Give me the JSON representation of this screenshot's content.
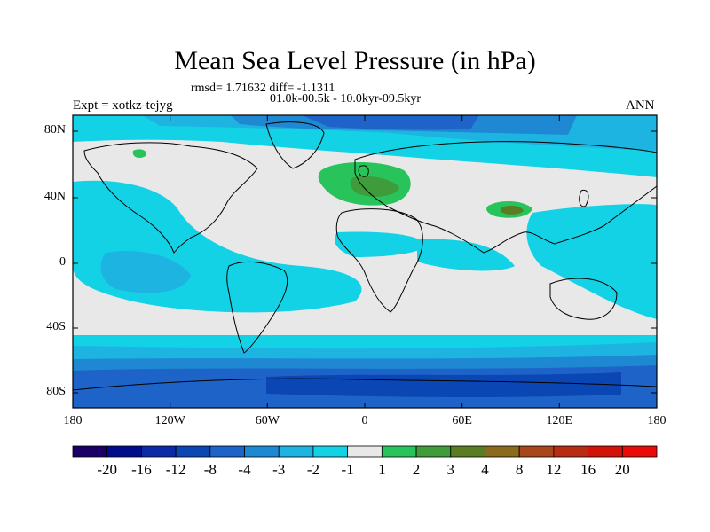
{
  "title": "Mean Sea Level Pressure (in hPa)",
  "stats": "rmsd= 1.71632 diff= -1.1311",
  "period": "01.0k-00.5k - 10.0kyr-09.5kyr",
  "experiment": "Expt = xotkz-tejyg",
  "season": "ANN",
  "lat_labels": [
    "80N",
    "40N",
    "0",
    "40S",
    "80S"
  ],
  "lon_labels": [
    "180",
    "120W",
    "60W",
    "0",
    "60E",
    "120E",
    "180"
  ],
  "colorbar": {
    "labels": [
      "-20",
      "-16",
      "-12",
      "-8",
      "-4",
      "-3",
      "-2",
      "-1",
      "1",
      "2",
      "3",
      "4",
      "8",
      "12",
      "16",
      "20"
    ],
    "colors": [
      "#1a0066",
      "#000c8c",
      "#0a2aa6",
      "#0b46b5",
      "#1e64c8",
      "#1e88d2",
      "#1eb4e1",
      "#14d2e6",
      "#e8e8e8",
      "#28c35a",
      "#3f9c3a",
      "#5a7d23",
      "#8a6a1c",
      "#a8481a",
      "#b82c14",
      "#d21408",
      "#eb0a0a"
    ]
  },
  "field_colors": {
    "neutral": "#e8e8e8",
    "minus1": "#14d2e6",
    "minus2": "#1eb4e1",
    "minus3": "#1e88d2",
    "minus4": "#1e64c8",
    "minus8": "#0b46b5",
    "minus12": "#0a2aa6",
    "plus2": "#28c35a",
    "plus3": "#3f9c3a",
    "plus4": "#5a7d23"
  }
}
